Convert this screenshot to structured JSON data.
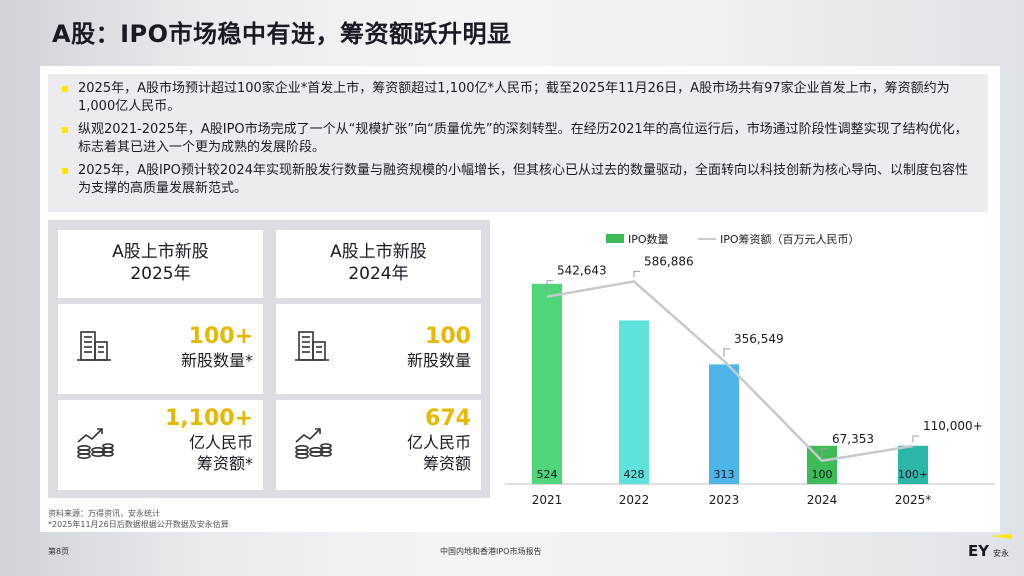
{
  "title": "A股：IPO市场稳中有进，筹资额跃升明显",
  "bullets": [
    "2025年，A股市场预计超过100家企业*首发上市，筹资额超过1,100亿*人民币；截至2025年11月26日，A股市场共有97家企业首发上市，筹资额约为1,000亿人民币。",
    "纵观2021-2025年，A股IPO市场完成了一个从“规模扩张”向“质量优先”的深刻转型。在经历2021年的高位运行后，市场通过阶段性调整实现了结构优化，标志着其已进入一个更为成熟的发展阶段。",
    "2025年，A股IPO预计较2024年实现新股发行数量与融资规模的小幅增长，但其核心已从过去的数量驱动，全面转向以科技创新为核心导向、以制度包容性为支撑的高质量发展新范式。"
  ],
  "cards": [
    {
      "title_line1": "A股上市新股",
      "title_line2": "2025年",
      "count_value": "100+",
      "count_label": "新股数量*",
      "amount_value": "1,100+",
      "amount_unit": "亿人民币",
      "amount_label": "筹资额*",
      "icons": [
        "building-icon",
        "growth-coins-icon"
      ]
    },
    {
      "title_line1": "A股上市新股",
      "title_line2": "2024年",
      "count_value": "100",
      "count_label": "新股数量",
      "amount_value": "674",
      "amount_unit": "亿人民币",
      "amount_label": "筹资额",
      "icons": [
        "building-icon",
        "growth-coins-icon"
      ]
    }
  ],
  "chart_data": {
    "type": "bar",
    "categories": [
      "2021",
      "2022",
      "2023",
      "2024",
      "2025*"
    ],
    "series": [
      {
        "name": "IPO数量",
        "type": "bar",
        "values": [
          524,
          428,
          313,
          100,
          100
        ],
        "labels": [
          "524",
          "428",
          "313",
          "100",
          "100+"
        ],
        "colors": [
          "#4fd67a",
          "#5ee3dc",
          "#4db5e8",
          "#3dbb56",
          "#2bb6a8"
        ]
      },
      {
        "name": "IPO筹资额（百万元人民币）",
        "type": "line",
        "values": [
          542643,
          586886,
          356549,
          67353,
          110000
        ],
        "labels": [
          "542,643",
          "586,886",
          "356,549",
          "67,353",
          "110,000+"
        ],
        "color": "#c8c8d0"
      }
    ],
    "legend_position": "top"
  },
  "source_line1": "资料来源：万得资讯，安永统计",
  "source_line2": "*2025年11月26日后数据根据公开数据及安永估算",
  "footer_page": "第8页",
  "footer_center": "中国内地和香港IPO市场报告",
  "logo_text": "EY",
  "logo_sub": "安永"
}
